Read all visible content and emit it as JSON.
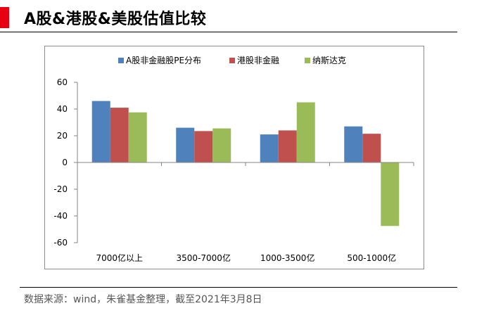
{
  "title": "A股&港股&美股估值比较",
  "source": "数据来源：wind，朱雀基金整理，截至2021年3月8日",
  "colors": {
    "accent": "#e60012",
    "series": [
      "#4f81bd",
      "#c0504d",
      "#9bbb59"
    ],
    "axis": "#868686",
    "frame": "#8c8c8c"
  },
  "chart_data": {
    "type": "bar",
    "title": "",
    "xlabel": "",
    "ylabel": "",
    "categories": [
      "7000亿以上",
      "3500-7000亿",
      "1000-3500亿",
      "500-1000亿"
    ],
    "series": [
      {
        "name": "A股非金融股PE分布",
        "values": [
          46,
          26,
          21,
          27
        ]
      },
      {
        "name": "港股非金融",
        "values": [
          41,
          23.5,
          24,
          21.5
        ]
      },
      {
        "name": "纳斯达克",
        "values": [
          37.5,
          25.5,
          45,
          -47.5
        ]
      }
    ],
    "yticks": [
      -60,
      -40,
      -20,
      0,
      20,
      40,
      60
    ],
    "ylim": [
      -60,
      60
    ],
    "grid": false,
    "legend_position": "top"
  }
}
